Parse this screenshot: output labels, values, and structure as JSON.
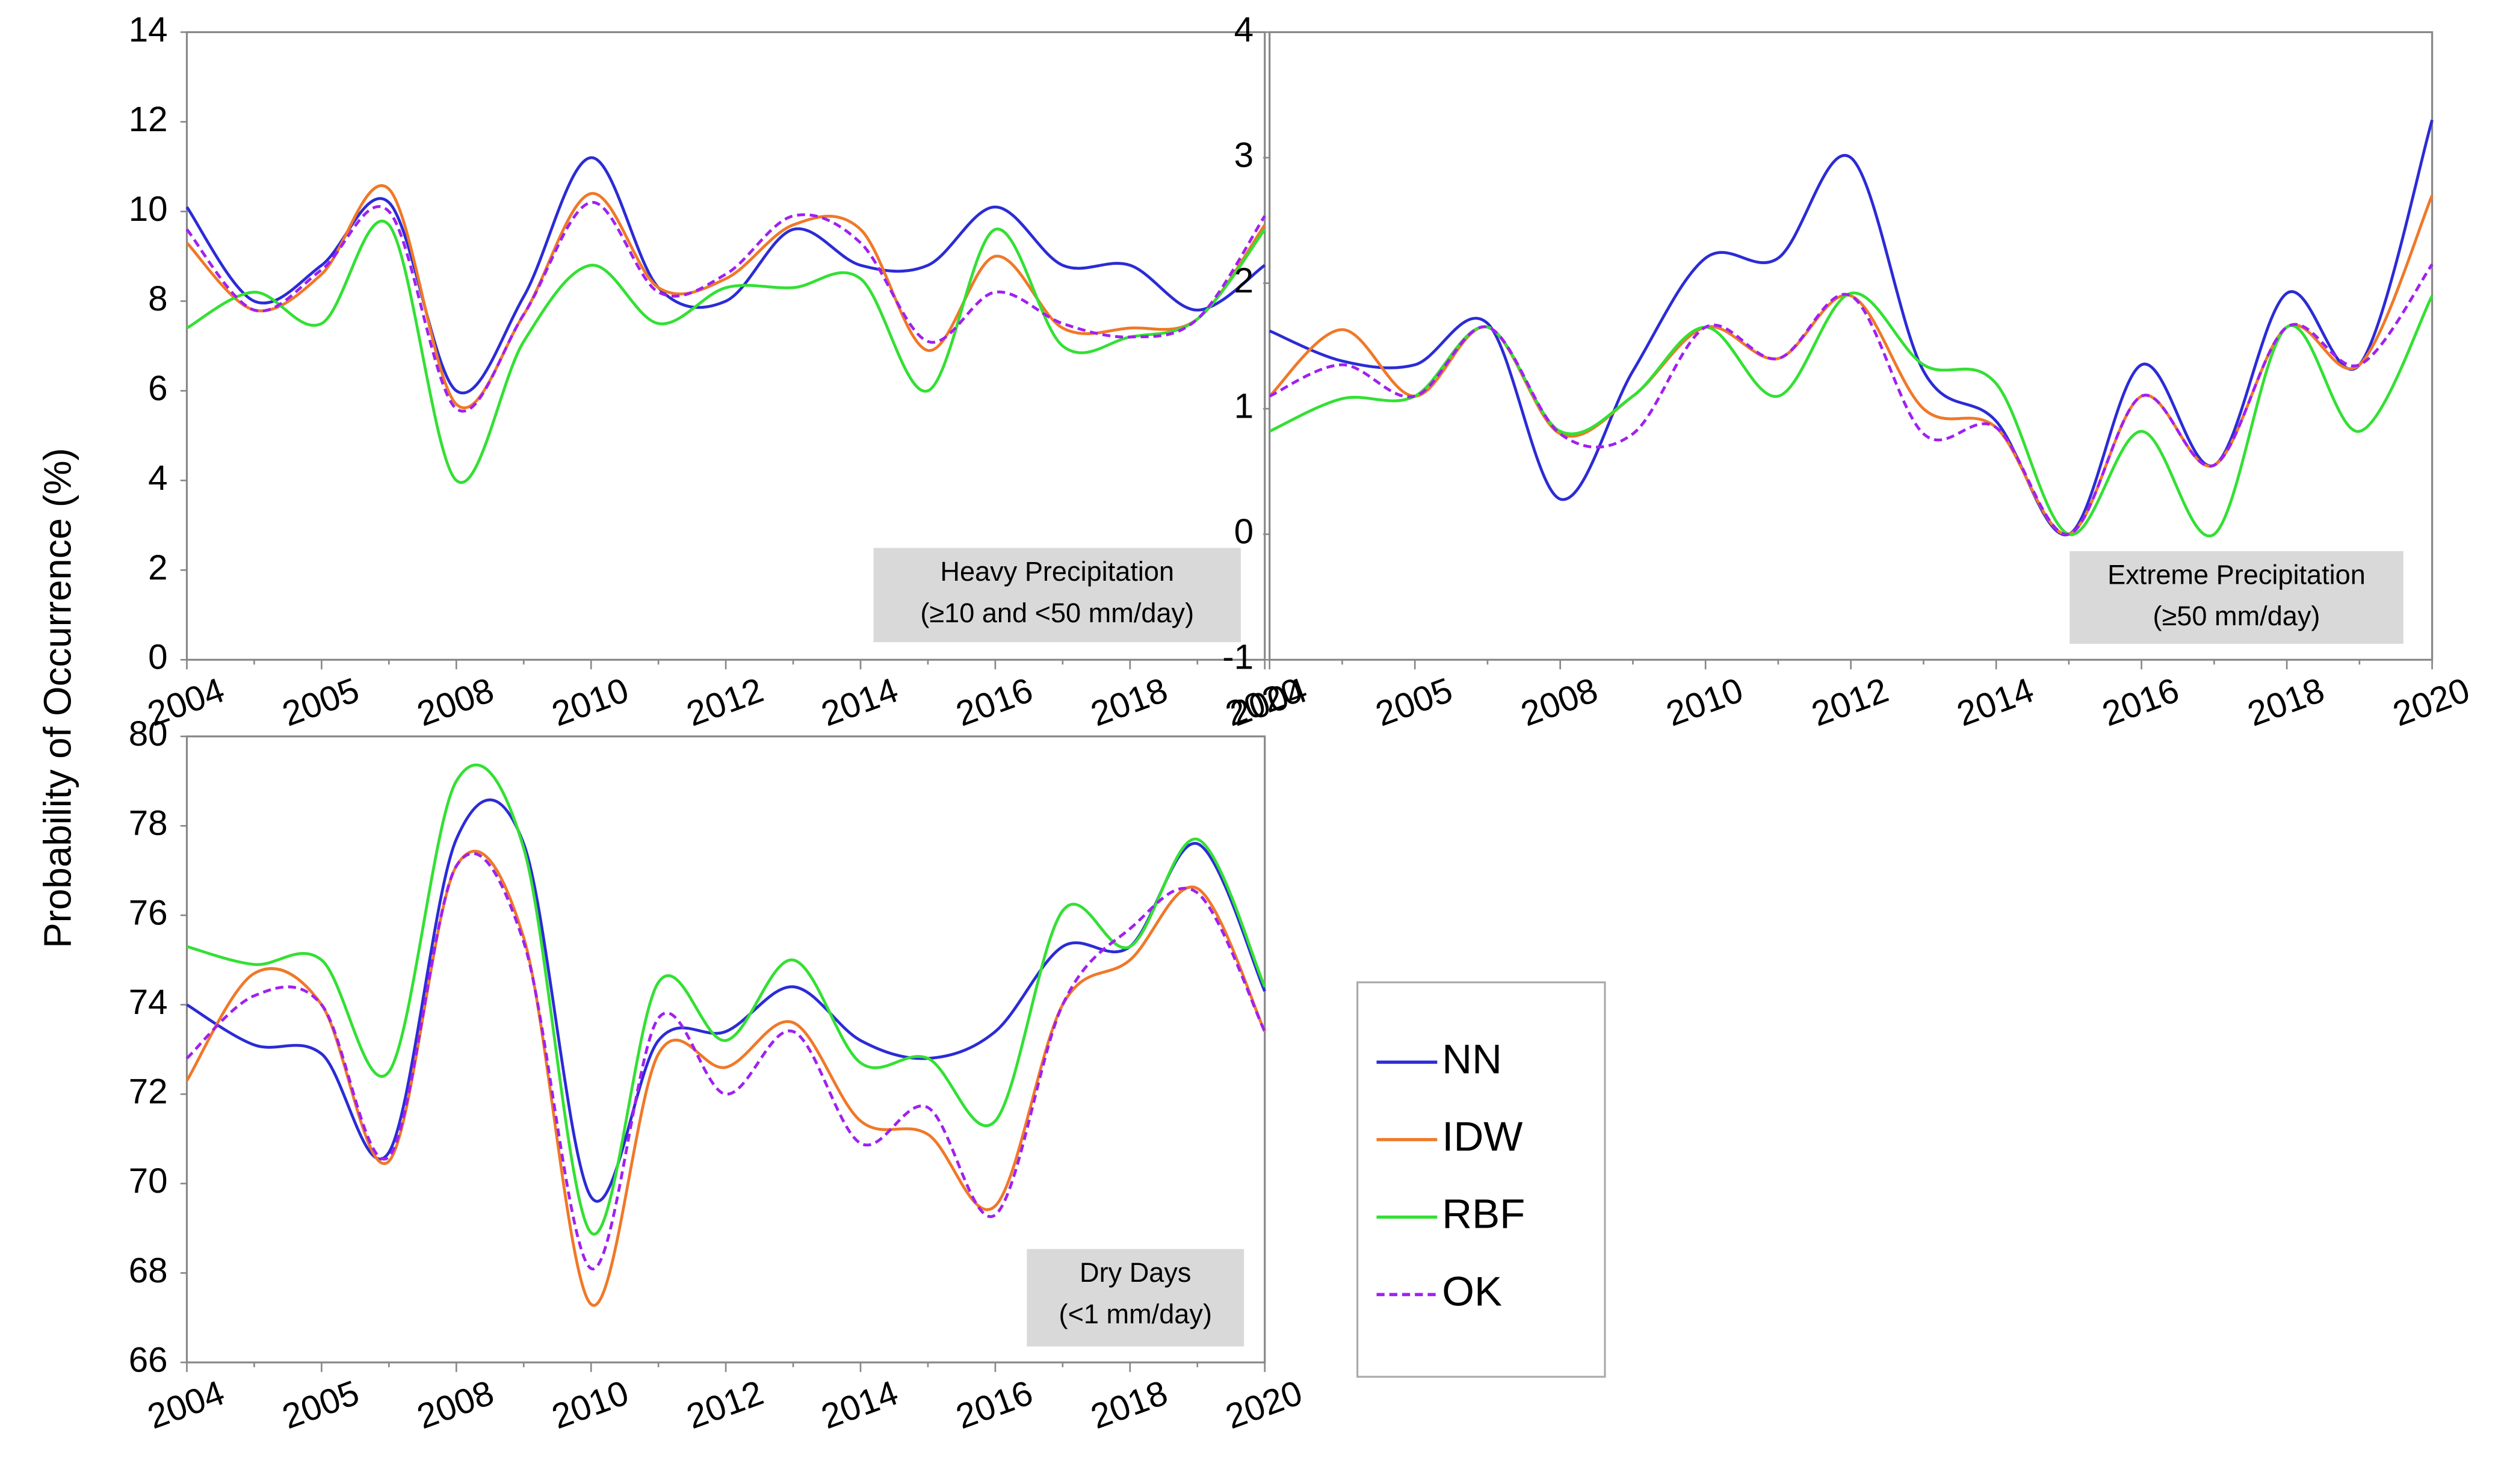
{
  "chart_data": [
    {
      "type": "line",
      "ylabel": "Probability of Occurrence (%)",
      "annotation": [
        "Heavy Precipitation",
        "(≥10 and <50 mm/day)"
      ],
      "categories": [
        "2004",
        null,
        "2005",
        null,
        "2008",
        null,
        "2010",
        null,
        "2012",
        null,
        "2014",
        null,
        "2016",
        null,
        "2018",
        null,
        "2020"
      ],
      "ylim": [
        0,
        14
      ],
      "yticks": [
        0,
        2,
        4,
        6,
        8,
        10,
        12,
        14
      ],
      "series": [
        {
          "name": "NN",
          "color": "#2b2bd6",
          "dashed": false,
          "values": [
            10.1,
            8.0,
            8.8,
            10.2,
            6.0,
            8.1,
            11.2,
            8.3,
            8.0,
            9.6,
            8.8,
            8.8,
            10.1,
            8.8,
            8.8,
            7.8,
            8.8
          ]
        },
        {
          "name": "IDW",
          "color": "#f07828",
          "dashed": false,
          "values": [
            9.3,
            7.8,
            8.6,
            10.5,
            5.7,
            7.7,
            10.4,
            8.3,
            8.5,
            9.7,
            9.6,
            6.9,
            9.0,
            7.4,
            7.4,
            7.6,
            9.7
          ]
        },
        {
          "name": "RBF",
          "color": "#33e033",
          "dashed": false,
          "values": [
            7.4,
            8.2,
            7.5,
            9.7,
            4.0,
            7.1,
            8.8,
            7.5,
            8.3,
            8.3,
            8.5,
            6.0,
            9.6,
            7.0,
            7.2,
            7.6,
            9.6
          ]
        },
        {
          "name": "OK",
          "color": "#a020f0",
          "dashed": true,
          "values": [
            9.6,
            7.8,
            8.7,
            10.0,
            5.6,
            7.7,
            10.2,
            8.2,
            8.6,
            9.9,
            9.3,
            7.1,
            8.2,
            7.5,
            7.2,
            7.6,
            9.9
          ]
        }
      ]
    },
    {
      "type": "line",
      "annotation": [
        "Extreme Precipitation",
        "(≥50 mm/day)"
      ],
      "categories": [
        "2004",
        null,
        "2005",
        null,
        "2008",
        null,
        "2010",
        null,
        "2012",
        null,
        "2014",
        null,
        "2016",
        null,
        "2018",
        null,
        "2020"
      ],
      "ylim": [
        -1,
        4
      ],
      "yticks": [
        -1,
        0,
        1,
        2,
        3,
        4
      ],
      "series": [
        {
          "color": "#2b2bd6",
          "dashed": false,
          "values": [
            1.62,
            1.38,
            1.35,
            1.68,
            0.28,
            1.3,
            2.2,
            2.2,
            3.0,
            1.3,
            0.9,
            0.0,
            1.35,
            0.55,
            1.92,
            1.35,
            3.3
          ]
        },
        {
          "color": "#f07828",
          "dashed": false,
          "values": [
            1.1,
            1.63,
            1.1,
            1.65,
            0.8,
            1.1,
            1.65,
            1.4,
            1.9,
            1.0,
            0.85,
            0.0,
            1.1,
            0.55,
            1.65,
            1.35,
            2.7
          ]
        },
        {
          "color": "#33e033",
          "dashed": false,
          "values": [
            0.82,
            1.08,
            1.1,
            1.65,
            0.82,
            1.1,
            1.65,
            1.1,
            1.92,
            1.35,
            1.2,
            0.0,
            0.82,
            0.0,
            1.65,
            0.82,
            1.9
          ]
        },
        {
          "color": "#a020f0",
          "dashed": true,
          "values": [
            1.1,
            1.35,
            1.1,
            1.65,
            0.8,
            0.8,
            1.65,
            1.4,
            1.9,
            0.8,
            0.85,
            0.0,
            1.1,
            0.55,
            1.65,
            1.35,
            2.15
          ]
        }
      ]
    },
    {
      "type": "line",
      "annotation": [
        "Dry Days",
        "(<1 mm/day)"
      ],
      "categories": [
        "2004",
        null,
        "2005",
        null,
        "2008",
        null,
        "2010",
        null,
        "2012",
        null,
        "2014",
        null,
        "2016",
        null,
        "2018",
        null,
        "2020"
      ],
      "ylim": [
        66,
        80
      ],
      "yticks": [
        66,
        68,
        70,
        72,
        74,
        76,
        78,
        80
      ],
      "series": [
        {
          "color": "#2b2bd6",
          "dashed": false,
          "values": [
            74.0,
            73.1,
            72.9,
            70.7,
            77.7,
            77.6,
            69.7,
            73.2,
            73.4,
            74.4,
            73.2,
            72.8,
            73.4,
            75.3,
            75.3,
            77.6,
            74.3
          ]
        },
        {
          "color": "#f07828",
          "dashed": false,
          "values": [
            72.3,
            74.7,
            74.0,
            70.5,
            77.1,
            75.5,
            67.3,
            72.9,
            72.6,
            73.6,
            71.4,
            71.1,
            69.5,
            74.0,
            75.0,
            76.6,
            73.4
          ]
        },
        {
          "color": "#33e033",
          "dashed": false,
          "values": [
            75.3,
            74.9,
            75.0,
            72.5,
            79.0,
            77.5,
            68.9,
            74.5,
            73.2,
            75.0,
            72.7,
            72.8,
            71.4,
            76.1,
            75.3,
            77.7,
            74.4
          ]
        },
        {
          "color": "#a020f0",
          "dashed": true,
          "values": [
            72.8,
            74.2,
            74.0,
            70.6,
            77.1,
            75.4,
            68.1,
            73.7,
            72.0,
            73.4,
            70.9,
            71.7,
            69.3,
            74.0,
            75.7,
            76.5,
            73.4
          ]
        }
      ]
    }
  ]
}
